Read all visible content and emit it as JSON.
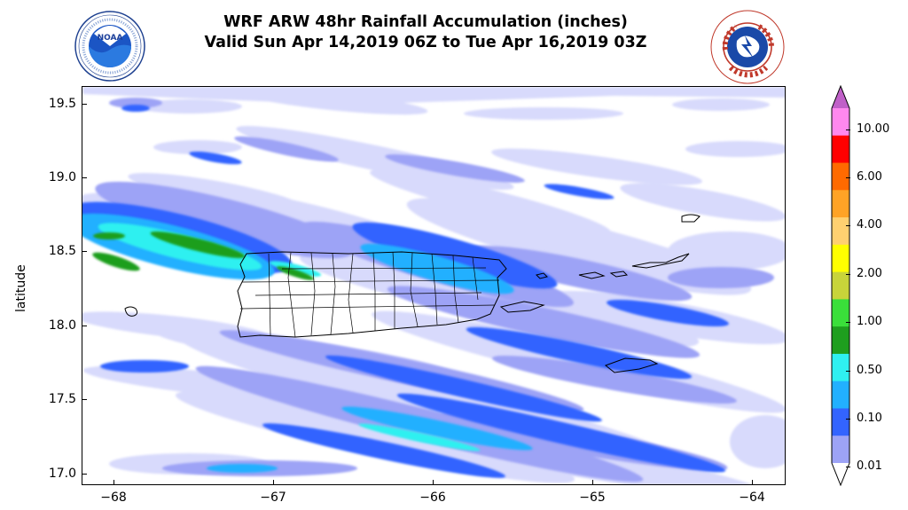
{
  "title": {
    "line1": "WRF ARW 48hr Rainfall Accumulation (inches)",
    "line2": "Valid Sun Apr 14,2019 06Z to Tue Apr 16,2019 03Z"
  },
  "logos": {
    "left": {
      "name": "noaa-logo",
      "text": "NOAA",
      "ring_text": "NATIONAL OCEANIC AND ATMOSPHERIC ADMINISTRATION · U.S. DEPARTMENT OF COMMERCE"
    },
    "right": {
      "name": "nws-logo",
      "ring_text": "NATIONAL WEATHER SERVICE"
    }
  },
  "map": {
    "ylabel": "latitude",
    "yticks": [
      "19.5",
      "19.0",
      "18.5",
      "18.0",
      "17.5",
      "17.0"
    ],
    "xticks": [
      "−68",
      "−67",
      "−66",
      "−65",
      "−64"
    ],
    "xlim": [
      -68.2,
      -63.8
    ],
    "ylim": [
      16.92,
      19.6
    ],
    "land_areas": [
      "Puerto Rico",
      "Vieques",
      "Culebra",
      "U.S. Virgin Islands",
      "British Virgin Islands",
      "Mona Island"
    ]
  },
  "colorbar": {
    "labels": [
      "10.00",
      "6.00",
      "4.00",
      "2.00",
      "1.00",
      "0.50",
      "0.10",
      "0.01"
    ],
    "colors": [
      "#c060c8",
      "#ff88ee",
      "#ff0000",
      "#ff6a00",
      "#ffa326",
      "#ffd070",
      "#ffff00",
      "#c8d43a",
      "#3adf3a",
      "#1e9e1e",
      "#2ff0f0",
      "#22b0ff",
      "#3364ff",
      "#9da3f6",
      "#d8dafc"
    ],
    "colors_note": "from top (over-range) to bottom (lowest bin)"
  },
  "chart_data": {
    "type": "heatmap",
    "title": "WRF ARW 48hr Rainfall Accumulation (inches)",
    "subtitle": "Valid Sun Apr 14,2019 06Z to Tue Apr 16,2019 03Z",
    "xlabel": "",
    "ylabel": "latitude",
    "xlim": [
      -68.2,
      -63.8
    ],
    "ylim": [
      16.92,
      19.6
    ],
    "x_ticks": [
      -68,
      -67,
      -66,
      -65,
      -64
    ],
    "y_ticks": [
      17.0,
      17.5,
      18.0,
      18.5,
      19.0,
      19.5
    ],
    "levels": [
      0.01,
      0.1,
      0.5,
      1.0,
      2.0,
      4.0,
      6.0,
      10.0
    ],
    "grid": false,
    "legend": "colorbar-right",
    "rain_bands": [
      {
        "from": [
          -68.2,
          18.62
        ],
        "to": [
          -66.9,
          18.28
        ],
        "max_level": 1.0
      },
      {
        "from": [
          -67.6,
          19.55
        ],
        "to": [
          -64.2,
          18.3
        ],
        "max_level": 0.1
      },
      {
        "from": [
          -68.0,
          17.95
        ],
        "to": [
          -64.3,
          17.25
        ],
        "max_level": 0.5
      },
      {
        "from": [
          -67.8,
          17.5
        ],
        "to": [
          -64.5,
          16.95
        ],
        "max_level": 0.5
      },
      {
        "from": [
          -66.5,
          18.0
        ],
        "to": [
          -64.3,
          17.75
        ],
        "max_level": 0.1
      }
    ]
  }
}
